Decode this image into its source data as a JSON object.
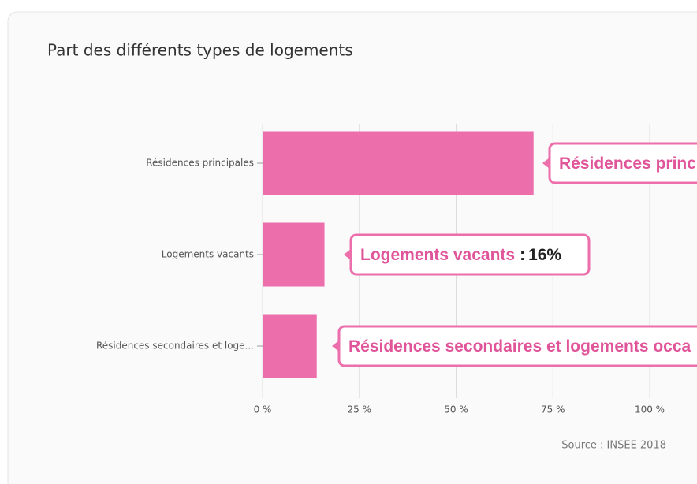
{
  "chart_data": {
    "type": "hbar",
    "title": "Part des différents types de logements",
    "categories": [
      "Résidences principales",
      "Logements vacants",
      "Résidences secondaires et loge..."
    ],
    "values": [
      70,
      16,
      14
    ],
    "value_labels": [
      null,
      "16%",
      null
    ],
    "annotations": [
      "Résidences princ",
      "Logements vacants",
      "Résidences secondaires et logements occa"
    ],
    "annotation_separator": ":",
    "color": "#ec6fac",
    "xlim": [
      0,
      100
    ],
    "xticks": [
      {
        "value": 0,
        "label": "0 %"
      },
      {
        "value": 25,
        "label": "25 %"
      },
      {
        "value": 50,
        "label": "50 %"
      },
      {
        "value": 75,
        "label": "75 %"
      },
      {
        "value": 100,
        "label": "100 %"
      }
    ],
    "grid": true,
    "source": "Source : INSEE 2018"
  }
}
